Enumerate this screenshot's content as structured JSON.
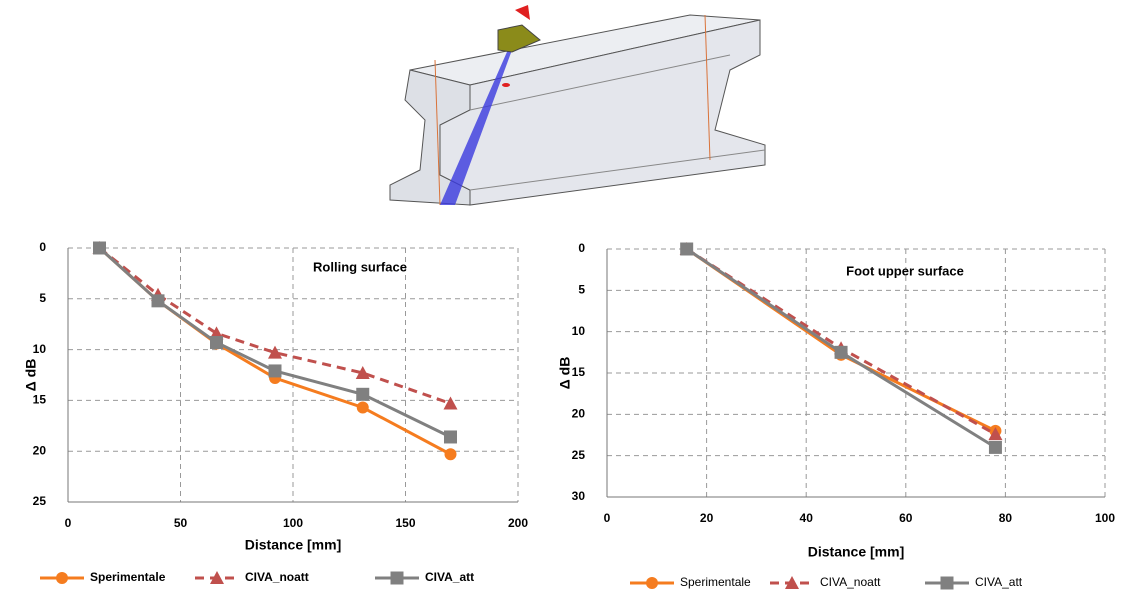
{
  "chart_data": [
    {
      "type": "line",
      "annotation": "Rolling surface",
      "x_label": "Distance [mm]",
      "y_label": "Δ dB",
      "x": [
        14,
        40,
        66,
        92,
        131,
        170
      ],
      "series": [
        {
          "name": "Sperimentale",
          "color": "#f57c1f",
          "line_style": "solid",
          "marker": "circle",
          "values": [
            0,
            5.2,
            9.4,
            12.8,
            15.7,
            20.3
          ]
        },
        {
          "name": "CIVA_noatt",
          "color": "#c0504d",
          "line_style": "dashed",
          "marker": "triangle",
          "values": [
            0,
            4.6,
            8.4,
            10.3,
            12.3,
            15.3
          ]
        },
        {
          "name": "CIVA_att",
          "color": "#808080",
          "line_style": "solid",
          "marker": "square",
          "values": [
            0,
            5.2,
            9.3,
            12.1,
            14.4,
            18.6
          ]
        }
      ],
      "xlim": [
        0,
        200
      ],
      "xticks": [
        0,
        50,
        100,
        150,
        200
      ],
      "ylim": [
        0,
        25
      ],
      "yticks": [
        0,
        5,
        10,
        15,
        20,
        25
      ],
      "y_reversed": true,
      "grid": true,
      "legend": "bottom"
    },
    {
      "type": "line",
      "annotation": "Foot upper surface",
      "x_label": "Distance [mm]",
      "y_label": "Δ dB",
      "x": [
        16,
        47,
        78
      ],
      "series": [
        {
          "name": "Sperimentale",
          "color": "#f57c1f",
          "line_style": "solid",
          "marker": "circle",
          "values": [
            0,
            12.8,
            22.0
          ]
        },
        {
          "name": "CIVA_noatt",
          "color": "#c0504d",
          "line_style": "dashed",
          "marker": "triangle",
          "values": [
            0,
            12,
            22.4
          ]
        },
        {
          "name": "CIVA_att",
          "color": "#808080",
          "line_style": "solid",
          "marker": "square",
          "values": [
            0,
            12.5,
            24
          ]
        }
      ],
      "xlim": [
        0,
        100
      ],
      "xticks": [
        0,
        20,
        40,
        60,
        80,
        100
      ],
      "ylim": [
        0,
        30
      ],
      "yticks": [
        0,
        5,
        10,
        15,
        20,
        25,
        30
      ],
      "y_reversed": true,
      "grid": true,
      "legend": "bottom"
    }
  ]
}
